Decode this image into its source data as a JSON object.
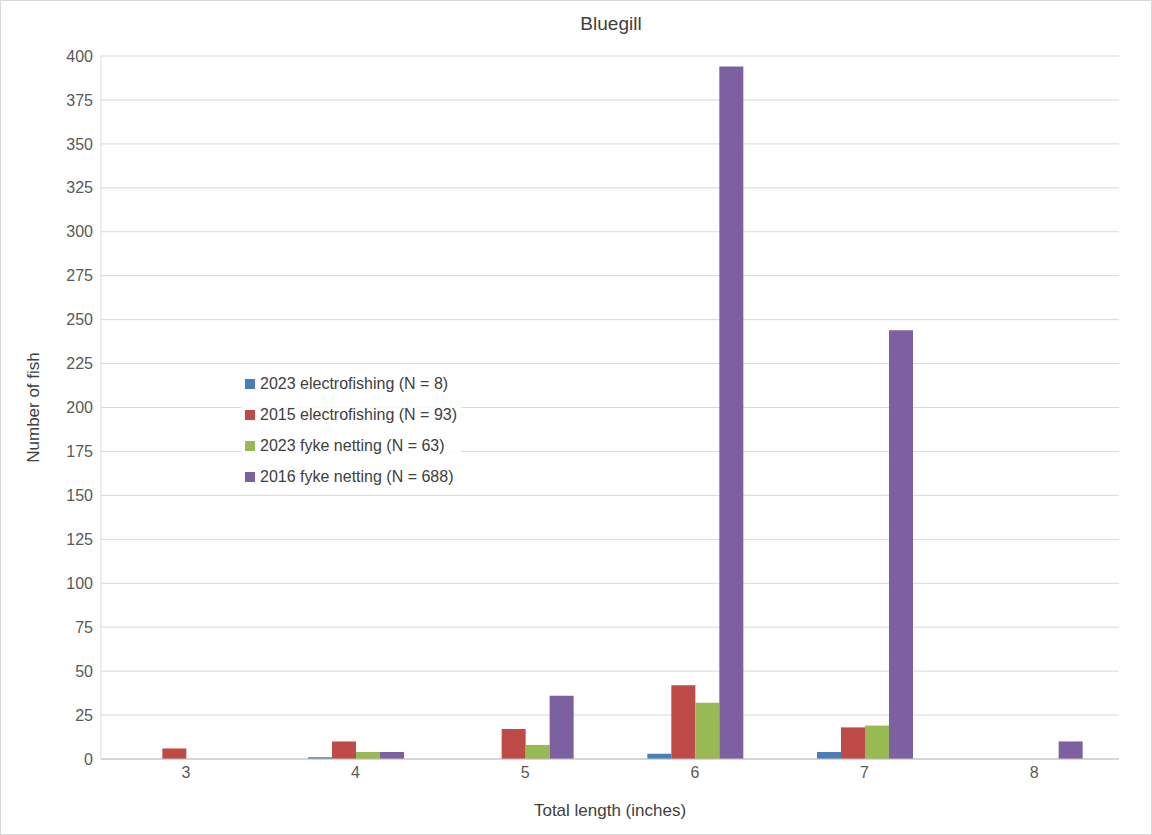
{
  "chart_data": {
    "type": "bar",
    "title": "Bluegill",
    "x_label": "Total length (inches)",
    "y_label": "Number of fish",
    "categories": [
      3,
      4,
      5,
      6,
      7,
      8
    ],
    "series": [
      {
        "name": "2023 electrofishing (N = 8)",
        "color": "#4a7ebb",
        "values": [
          0,
          1,
          0,
          3,
          4,
          0
        ]
      },
      {
        "name": "2015 electrofishing (N = 93)",
        "color": "#be4b48",
        "values": [
          6,
          10,
          17,
          42,
          18,
          0
        ]
      },
      {
        "name": "2023 fyke netting (N = 63)",
        "color": "#98b954",
        "values": [
          0,
          4,
          8,
          32,
          19,
          0
        ]
      },
      {
        "name": "2016 fyke netting (N = 688)",
        "color": "#7d60a0",
        "values": [
          0,
          4,
          36,
          394,
          244,
          10
        ]
      }
    ],
    "ylim": [
      0,
      400
    ],
    "yticks": [
      0,
      25,
      50,
      75,
      100,
      125,
      150,
      175,
      200,
      225,
      250,
      275,
      300,
      325,
      350,
      375,
      400
    ],
    "grid": true,
    "legend": "left"
  }
}
